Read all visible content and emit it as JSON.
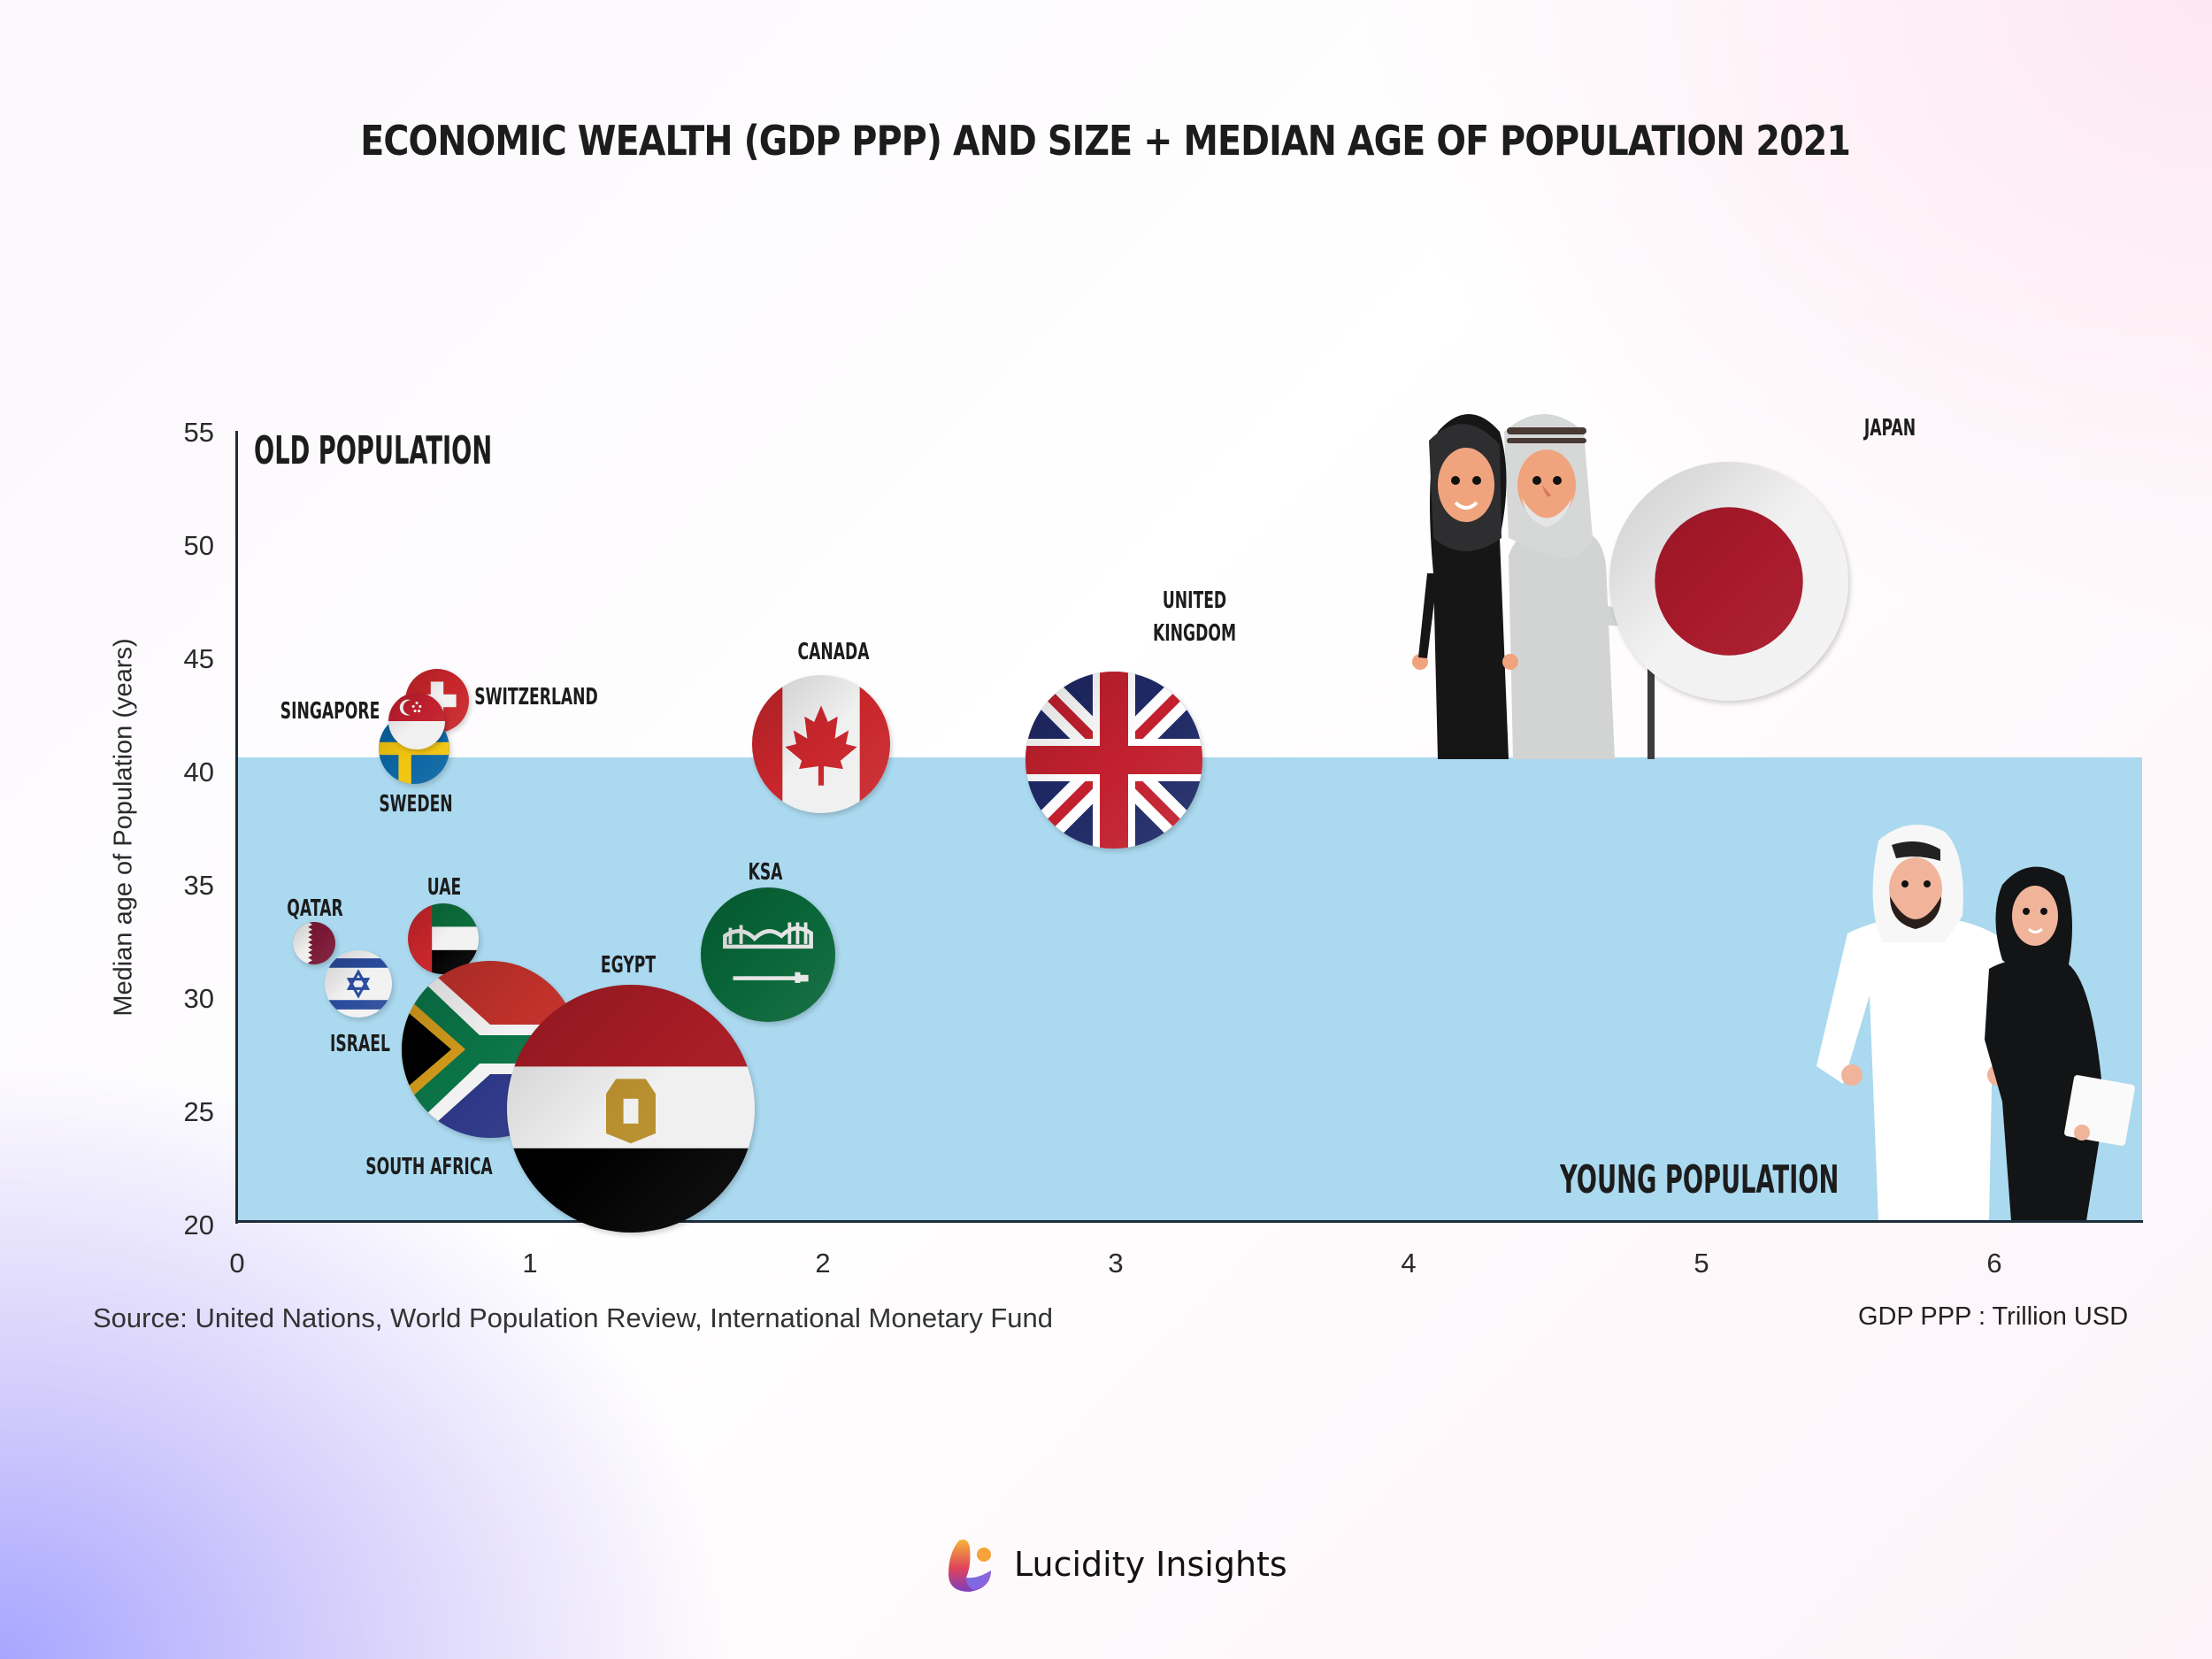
{
  "header": {
    "title": "ECONOMIC WEALTH (GDP PPP) AND SIZE + MEDIAN AGE OF POPULATION 2021"
  },
  "zones": {
    "old": "OLD POPULATION",
    "young": "YOUNG POPULATION",
    "threshold_age": 40.5,
    "band_color": "#abd9ef"
  },
  "axes": {
    "ylabel": "Median age of Population (years)",
    "yticks": [
      "55",
      "50",
      "45",
      "40",
      "35",
      "30",
      "25",
      "20"
    ],
    "xticks": [
      "0",
      "1",
      "2",
      "3",
      "4",
      "5",
      "6"
    ],
    "xunit": "GDP PPP : Trillion USD"
  },
  "footer": {
    "source": "Source: United Nations, World Population Review, International Monetary Fund",
    "brand": "Lucidity Insights"
  },
  "chart_data": {
    "type": "scatter",
    "subtype": "bubble",
    "title": "ECONOMIC WEALTH (GDP PPP) AND SIZE + MEDIAN AGE OF POPULATION 2021",
    "xlabel": "GDP PPP : Trillion USD",
    "ylabel": "Median age of Population (years)",
    "xlim": [
      0,
      6.5
    ],
    "ylim": [
      20,
      55
    ],
    "xticks": [
      0,
      1,
      2,
      3,
      4,
      5,
      6
    ],
    "yticks": [
      20,
      25,
      30,
      35,
      40,
      45,
      50,
      55
    ],
    "grid": false,
    "annotations": [
      "OLD POPULATION",
      "YOUNG POPULATION"
    ],
    "bubble_size_meaning": "population size",
    "points": [
      {
        "label": "JAPAN",
        "x": 5.1,
        "y": 48.3,
        "radius_px": 135,
        "flag": "japan"
      },
      {
        "label": "UNITED KINGDOM",
        "x": 3.0,
        "y": 40.4,
        "radius_px": 100,
        "flag": "uk"
      },
      {
        "label": "CANADA",
        "x": 2.0,
        "y": 41.1,
        "radius_px": 78,
        "flag": "canada"
      },
      {
        "label": "SWITZERLAND",
        "x": 0.69,
        "y": 43.0,
        "radius_px": 36,
        "flag": "switzerland"
      },
      {
        "label": "SINGAPORE",
        "x": 0.62,
        "y": 42.1,
        "radius_px": 32,
        "flag": "singapore"
      },
      {
        "label": "SWEDEN",
        "x": 0.61,
        "y": 40.9,
        "radius_px": 40,
        "flag": "sweden"
      },
      {
        "label": "KSA",
        "x": 1.82,
        "y": 31.8,
        "radius_px": 76,
        "flag": "ksa"
      },
      {
        "label": "UAE",
        "x": 0.71,
        "y": 32.5,
        "radius_px": 40,
        "flag": "uae"
      },
      {
        "label": "QATAR",
        "x": 0.27,
        "y": 32.3,
        "radius_px": 24,
        "flag": "qatar"
      },
      {
        "label": "ISRAEL",
        "x": 0.42,
        "y": 30.5,
        "radius_px": 38,
        "flag": "israel"
      },
      {
        "label": "EGYPT",
        "x": 1.35,
        "y": 25.0,
        "radius_px": 140,
        "flag": "egypt"
      },
      {
        "label": "SOUTH AFRICA",
        "x": 0.87,
        "y": 27.6,
        "radius_px": 100,
        "flag": "south_africa"
      }
    ]
  },
  "labels": {
    "japan": "JAPAN",
    "uk_1": "UNITED",
    "uk_2": "KINGDOM",
    "canada": "CANADA",
    "switzerland": "SWITZERLAND",
    "singapore": "SINGAPORE",
    "sweden": "SWEDEN",
    "ksa": "KSA",
    "uae": "UAE",
    "qatar": "QATAR",
    "israel": "ISRAEL",
    "egypt": "EGYPT",
    "south_africa": "SOUTH AFRICA"
  },
  "colors": {
    "axis": "#1f2c3a",
    "japan_red": "#a8192b",
    "uk_blue": "#1f2a66",
    "uk_red": "#c2202e",
    "green_ksa": "#086638",
    "egypt_gold": "#b9902f"
  }
}
